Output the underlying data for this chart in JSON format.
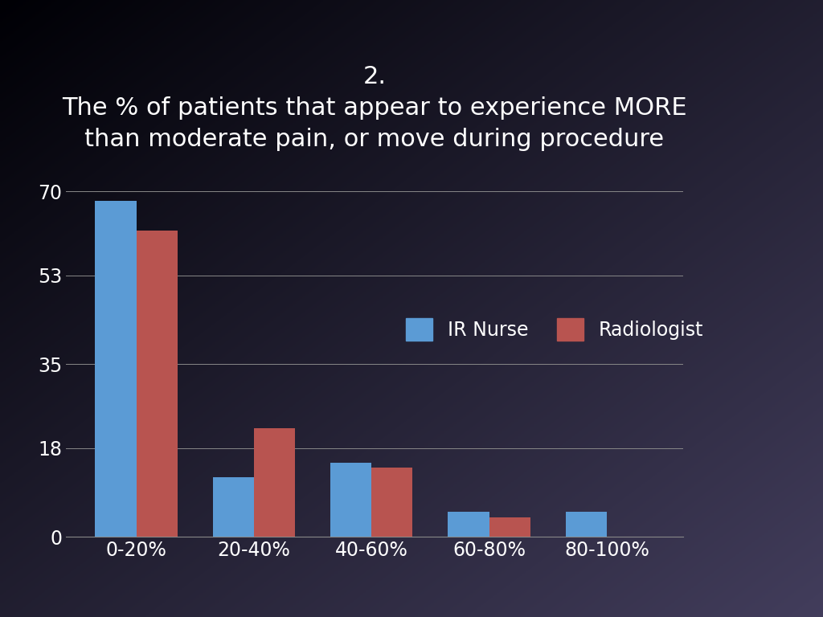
{
  "title_line1": "2.",
  "title_line2": "The % of patients that appear to experience MORE",
  "title_line3": "than moderate pain, or move during procedure",
  "categories": [
    "0-20%",
    "20-40%",
    "40-60%",
    "60-80%",
    "80-100%"
  ],
  "ir_nurse": [
    68,
    12,
    15,
    5,
    5
  ],
  "radiologist": [
    62,
    22,
    14,
    4,
    0
  ],
  "ir_nurse_color": "#5b9bd5",
  "radiologist_color": "#b85450",
  "yticks": [
    0,
    18,
    35,
    53,
    70
  ],
  "legend_ir_nurse": "IR Nurse",
  "legend_radiologist": "Radiologist",
  "text_color": "#ffffff",
  "grid_color": "#888888",
  "title_fontsize": 22,
  "tick_fontsize": 17,
  "legend_fontsize": 17
}
